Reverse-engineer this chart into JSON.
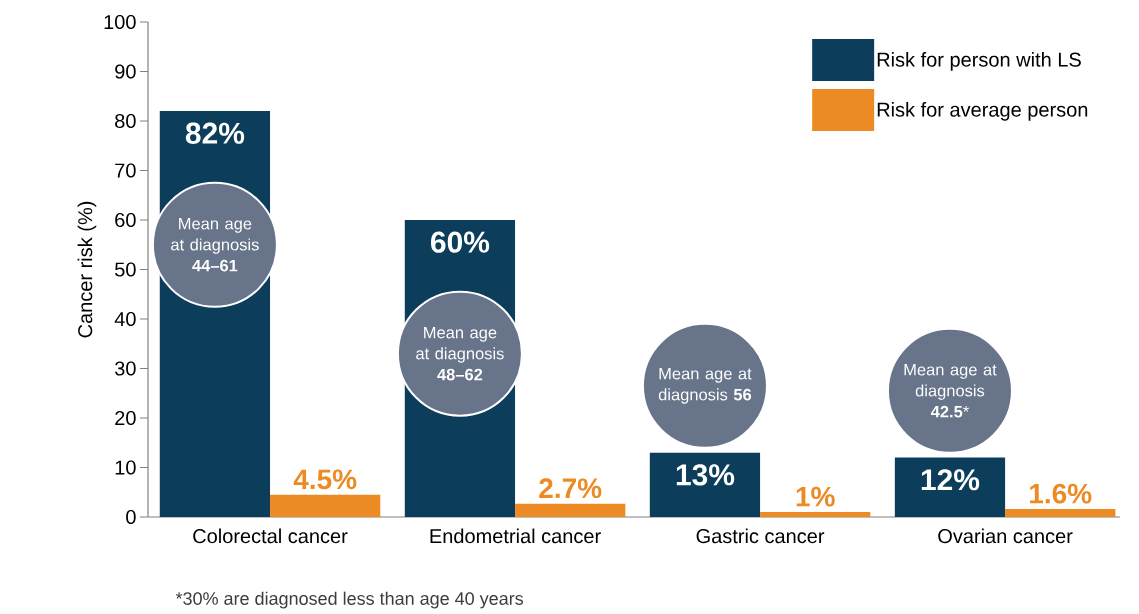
{
  "chart_data": {
    "type": "bar",
    "ylabel": "Cancer risk (%)",
    "categories": [
      "Colorectal cancer",
      "Endometrial cancer",
      "Gastric cancer",
      "Ovarian cancer"
    ],
    "series": [
      {
        "name": "Risk for person with LS",
        "color": "#0c3d5a",
        "values": [
          82,
          60,
          13,
          12
        ],
        "value_labels": [
          "82%",
          "60%",
          "13%",
          "12%"
        ]
      },
      {
        "name": "Risk for average person",
        "color": "#ec8b24",
        "values": [
          4.5,
          2.7,
          1,
          1.6
        ],
        "value_labels": [
          "4.5%",
          "2.7%",
          "1%",
          "1.6%"
        ]
      }
    ],
    "ylim": [
      0,
      100
    ],
    "yticks": [
      0,
      10,
      20,
      30,
      40,
      50,
      60,
      70,
      80,
      90,
      100
    ],
    "legend": "top right",
    "grid": false,
    "annotations": [
      "Mean age at diagnosis **44–61**",
      "Mean age at diagnosis **48–62**",
      "Mean age at diagnosis **56**",
      "Mean age at diagnosis **42.5***",
      "*30% are diagnosed less than age 40 years"
    ]
  }
}
